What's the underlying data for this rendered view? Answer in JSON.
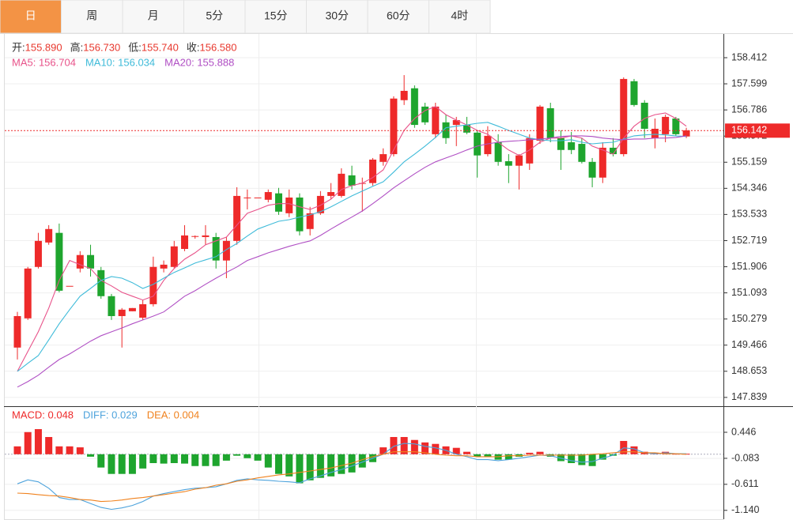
{
  "tabs": {
    "items": [
      "日",
      "周",
      "月",
      "5分",
      "15分",
      "30分",
      "60分",
      "4时"
    ],
    "active": 0
  },
  "chart_data": [
    {
      "type": "candlestick",
      "info": [
        {
          "label": "开:",
          "value": "155.890"
        },
        {
          "label": "高:",
          "value": "156.730"
        },
        {
          "label": "低:",
          "value": "155.740"
        },
        {
          "label": "收:",
          "value": "156.580"
        }
      ],
      "up_color": "#ee2a2a",
      "down_color": "#1ea52e",
      "grid": true,
      "ylim": [
        147.59,
        159.15
      ],
      "yticks": [
        158.412,
        157.599,
        156.786,
        155.972,
        155.159,
        154.346,
        153.533,
        152.719,
        151.906,
        151.093,
        150.279,
        149.466,
        148.653,
        147.839
      ],
      "last_price": 156.142,
      "last_price_color": "#ee2a2a",
      "open": [
        149.39,
        150.3,
        151.9,
        152.66,
        152.96,
        151.31,
        151.85,
        152.27,
        151.8,
        150.99,
        150.37,
        150.52,
        150.32,
        150.74,
        151.85,
        151.9,
        152.46,
        152.86,
        152.83,
        152.83,
        152.1,
        152.71,
        154.06,
        154.06,
        153.99,
        154.19,
        153.57,
        154.06,
        153.08,
        153.57,
        154.11,
        154.11,
        154.75,
        154.51,
        154.51,
        155.17,
        155.41,
        157.09,
        157.46,
        156.89,
        156.03,
        156.4,
        156.32,
        156.32,
        156.08,
        155.41,
        155.78,
        155.19,
        155.05,
        155.12,
        155.83,
        156.84,
        155.91,
        155.78,
        155.73,
        155.17,
        154.68,
        155.61,
        155.41,
        157.68,
        157.01,
        155.91,
        156.03,
        156.52,
        155.96
      ],
      "high": [
        150.5,
        151.9,
        152.96,
        153.2,
        153.25,
        151.31,
        152.39,
        152.59,
        151.9,
        151.06,
        150.62,
        150.62,
        150.87,
        152.22,
        152.1,
        152.71,
        153.2,
        152.88,
        153.2,
        152.96,
        152.83,
        154.38,
        154.31,
        154.06,
        154.31,
        154.36,
        154.31,
        154.19,
        153.77,
        154.26,
        154.51,
        154.97,
        155.05,
        154.68,
        155.29,
        155.59,
        157.21,
        157.87,
        157.55,
        157.01,
        157.01,
        156.64,
        156.57,
        156.57,
        156.15,
        156.28,
        156.03,
        155.41,
        155.41,
        156.03,
        156.94,
        157.01,
        156.15,
        156.1,
        155.91,
        155.29,
        155.78,
        155.91,
        157.8,
        157.75,
        157.09,
        156.52,
        156.64,
        156.57,
        156.23
      ],
      "low": [
        149.02,
        150.25,
        151.85,
        152.59,
        151.11,
        151.31,
        151.73,
        151.6,
        150.91,
        150.25,
        149.39,
        150.52,
        150.25,
        150.67,
        151.73,
        151.85,
        152.39,
        152.78,
        152.59,
        151.85,
        151.55,
        152.59,
        153.69,
        154.06,
        153.91,
        153.52,
        153.45,
        152.88,
        152.88,
        153.52,
        154.01,
        154.06,
        154.31,
        153.62,
        154.43,
        155.05,
        155.34,
        156.94,
        156.23,
        156.32,
        155.91,
        155.73,
        155.66,
        156.03,
        154.68,
        155.34,
        155.05,
        154.51,
        154.31,
        154.92,
        155.73,
        155.78,
        154.92,
        155.41,
        155.12,
        154.38,
        154.51,
        155.34,
        155.34,
        156.89,
        155.91,
        155.59,
        155.78,
        155.98,
        155.91
      ],
      "close": [
        150.37,
        151.85,
        152.71,
        153.08,
        151.16,
        151.31,
        152.27,
        151.85,
        150.99,
        150.37,
        150.57,
        150.62,
        150.74,
        151.9,
        151.97,
        152.54,
        152.88,
        152.86,
        152.88,
        152.1,
        152.71,
        154.11,
        154.06,
        154.06,
        154.23,
        153.62,
        154.06,
        153.01,
        153.57,
        154.11,
        154.23,
        154.8,
        154.43,
        154.51,
        155.24,
        155.41,
        157.14,
        157.38,
        156.32,
        156.4,
        156.89,
        155.91,
        156.47,
        156.08,
        155.37,
        155.98,
        155.17,
        155.05,
        155.37,
        155.91,
        156.89,
        155.91,
        155.54,
        155.54,
        155.17,
        154.68,
        155.61,
        155.41,
        157.75,
        156.94,
        156.2,
        156.2,
        156.57,
        156.03,
        156.15
      ],
      "series": [
        {
          "name": "MA5: 156.704",
          "color": "#e8538a",
          "values": [
            148.65,
            149.27,
            149.88,
            150.62,
            151.48,
            152.1,
            151.97,
            151.85,
            151.48,
            151.31,
            151.11,
            150.99,
            150.87,
            150.99,
            151.48,
            151.85,
            152.14,
            152.34,
            152.59,
            152.71,
            152.83,
            153.2,
            153.57,
            153.69,
            153.82,
            153.87,
            153.87,
            153.77,
            153.69,
            153.82,
            154.01,
            154.31,
            154.43,
            154.51,
            154.68,
            154.92,
            155.54,
            156.15,
            156.52,
            156.77,
            156.89,
            156.64,
            156.47,
            156.32,
            156.15,
            156.03,
            155.78,
            155.54,
            155.37,
            155.54,
            155.78,
            155.91,
            155.91,
            155.98,
            155.91,
            155.66,
            155.54,
            155.41,
            155.91,
            156.28,
            156.52,
            156.64,
            156.69,
            156.52,
            156.28
          ]
        },
        {
          "name": "MA10: 156.034",
          "color": "#3fbbd9",
          "values": [
            148.65,
            148.9,
            149.14,
            149.63,
            150.13,
            150.57,
            150.99,
            151.23,
            151.48,
            151.6,
            151.55,
            151.41,
            151.23,
            151.36,
            151.55,
            151.73,
            151.87,
            152.02,
            152.12,
            152.22,
            152.44,
            152.63,
            152.86,
            153.08,
            153.2,
            153.32,
            153.37,
            153.45,
            153.52,
            153.62,
            153.77,
            153.94,
            154.11,
            154.26,
            154.41,
            154.55,
            154.85,
            155.17,
            155.41,
            155.66,
            155.93,
            156.23,
            156.28,
            156.32,
            156.37,
            156.4,
            156.28,
            156.15,
            156.03,
            155.91,
            155.86,
            155.83,
            155.83,
            155.86,
            155.78,
            155.73,
            155.76,
            155.78,
            155.88,
            155.98,
            156.01,
            156.03,
            156.01,
            155.98,
            155.96
          ]
        },
        {
          "name": "MA20: 155.888",
          "color": "#b04fc4",
          "values": [
            148.16,
            148.33,
            148.53,
            148.78,
            149.02,
            149.19,
            149.39,
            149.59,
            149.76,
            149.88,
            150.0,
            150.13,
            150.25,
            150.37,
            150.5,
            150.74,
            150.99,
            151.16,
            151.36,
            151.55,
            151.73,
            151.9,
            152.1,
            152.22,
            152.34,
            152.44,
            152.54,
            152.63,
            152.71,
            152.88,
            153.08,
            153.27,
            153.45,
            153.64,
            153.87,
            154.11,
            154.36,
            154.58,
            154.8,
            155.0,
            155.17,
            155.29,
            155.41,
            155.54,
            155.66,
            155.73,
            155.78,
            155.81,
            155.83,
            155.86,
            155.88,
            155.91,
            155.96,
            155.98,
            155.98,
            155.96,
            155.91,
            155.88,
            155.86,
            155.88,
            155.88,
            155.91,
            155.91,
            155.93,
            155.98
          ]
        }
      ]
    },
    {
      "type": "macd",
      "ylim": [
        -1.32,
        0.96
      ],
      "yticks": [
        0.446,
        -0.083,
        -0.611,
        {
          "value": -1.14,
          "label": "-1.140"
        }
      ],
      "histogram": {
        "name": "MACD: 0.048",
        "color": "#ee2a2a",
        "up_color": "#ee2a2a",
        "down_color": "#1ea52e",
        "values": [
          0.16,
          0.45,
          0.51,
          0.35,
          0.16,
          0.16,
          0.14,
          -0.05,
          -0.27,
          -0.4,
          -0.4,
          -0.4,
          -0.29,
          -0.18,
          -0.19,
          -0.18,
          -0.19,
          -0.24,
          -0.24,
          -0.24,
          -0.13,
          -0.03,
          -0.08,
          -0.13,
          -0.27,
          -0.4,
          -0.45,
          -0.59,
          -0.53,
          -0.48,
          -0.45,
          -0.4,
          -0.37,
          -0.27,
          -0.16,
          0.14,
          0.35,
          0.35,
          0.29,
          0.24,
          0.21,
          0.16,
          0.13,
          0.05,
          -0.05,
          -0.05,
          -0.11,
          -0.11,
          -0.05,
          0.03,
          0.05,
          -0.05,
          -0.14,
          -0.18,
          -0.22,
          -0.24,
          -0.11,
          -0.03,
          0.27,
          0.16,
          0.05,
          0.03,
          0.05,
          0.01,
          0.01
        ]
      },
      "series": [
        {
          "name": "DIFF: 0.029",
          "color": "#4ea3dc",
          "values": [
            -0.6,
            -0.52,
            -0.56,
            -0.69,
            -0.88,
            -0.92,
            -0.92,
            -1.0,
            -1.08,
            -1.12,
            -1.09,
            -1.04,
            -0.96,
            -0.85,
            -0.8,
            -0.76,
            -0.72,
            -0.69,
            -0.68,
            -0.66,
            -0.6,
            -0.53,
            -0.5,
            -0.52,
            -0.53,
            -0.55,
            -0.56,
            -0.58,
            -0.5,
            -0.44,
            -0.37,
            -0.31,
            -0.24,
            -0.16,
            -0.08,
            0,
            0.16,
            0.22,
            0.21,
            0.16,
            0.13,
            0.08,
            0,
            -0.05,
            -0.11,
            -0.11,
            -0.13,
            -0.11,
            -0.08,
            -0.05,
            -0.02,
            -0.03,
            -0.08,
            -0.13,
            -0.16,
            -0.15,
            -0.08,
            -0.02,
            0.13,
            0.11,
            0.03,
            0.01,
            0.03,
            0.01,
            0.01
          ]
        },
        {
          "name": "DEA: 0.004",
          "color": "#f0821e",
          "values": [
            -0.79,
            -0.8,
            -0.82,
            -0.84,
            -0.85,
            -0.88,
            -0.92,
            -0.93,
            -0.96,
            -0.95,
            -0.93,
            -0.9,
            -0.88,
            -0.85,
            -0.82,
            -0.79,
            -0.76,
            -0.71,
            -0.68,
            -0.63,
            -0.6,
            -0.55,
            -0.52,
            -0.48,
            -0.45,
            -0.42,
            -0.4,
            -0.37,
            -0.34,
            -0.31,
            -0.28,
            -0.23,
            -0.18,
            -0.11,
            -0.05,
            0,
            0.05,
            0.05,
            0.05,
            0.03,
            0,
            -0.02,
            -0.03,
            -0.03,
            -0.05,
            -0.05,
            -0.05,
            -0.03,
            -0.03,
            -0.02,
            -0.02,
            -0.02,
            -0.02,
            -0.02,
            -0.02,
            0,
            0.01,
            0.03,
            0.05,
            0.05,
            0.03,
            0.03,
            0.01,
            0.01,
            0
          ]
        }
      ]
    }
  ]
}
